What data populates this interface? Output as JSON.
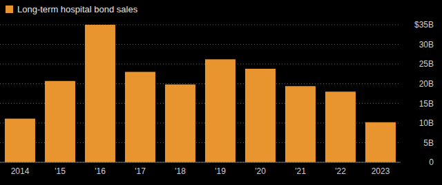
{
  "chart_data": {
    "type": "bar",
    "categories": [
      "2014",
      "'15",
      "'16",
      "'17",
      "'18",
      "'19",
      "'20",
      "'21",
      "'22",
      "2023"
    ],
    "series": [
      {
        "name": "Long-term hospital bond sales",
        "color": "#e8952f",
        "values": [
          11.1,
          20.7,
          35,
          23,
          19.8,
          26.2,
          23.8,
          19.4,
          18,
          10.2
        ]
      }
    ],
    "ylim": [
      0,
      35
    ],
    "yticks": [
      0,
      {
        "value": 5,
        "label": "5B"
      },
      {
        "value": 10,
        "label": "10B"
      },
      {
        "value": 15,
        "label": "15B"
      },
      {
        "value": 20,
        "label": "20B"
      },
      {
        "value": 25,
        "label": "25B"
      },
      {
        "value": 30,
        "label": "30B"
      },
      {
        "value": 35,
        "label": "$35B"
      }
    ],
    "grid": true,
    "legend": "top-left"
  }
}
